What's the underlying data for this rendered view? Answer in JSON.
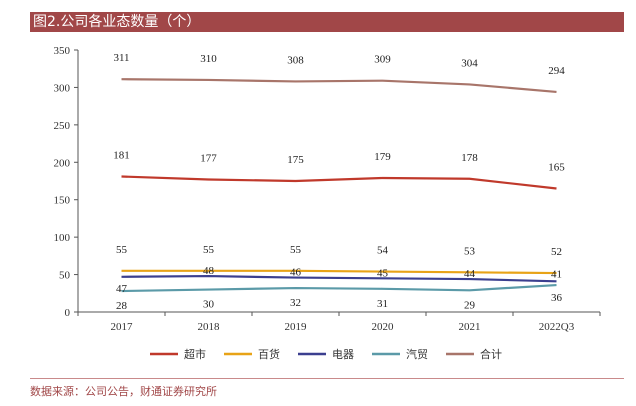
{
  "header": {
    "title": "图2.公司各业态数量（个）"
  },
  "footer": {
    "source": "数据来源：公司公告，财通证券研究所"
  },
  "chart_data": {
    "type": "line",
    "categories": [
      "2017",
      "2018",
      "2019",
      "2020",
      "2021",
      "2022Q3"
    ],
    "ylim": [
      0,
      350
    ],
    "yticks": [
      0,
      50,
      100,
      150,
      200,
      250,
      300,
      350
    ],
    "grid": false,
    "legend_position": "bottom",
    "series": [
      {
        "name": "超市",
        "color": "#c0392b",
        "values": [
          181,
          177,
          175,
          179,
          178,
          165
        ]
      },
      {
        "name": "百货",
        "color": "#e8a317",
        "values": [
          55,
          55,
          55,
          54,
          53,
          52
        ]
      },
      {
        "name": "电器",
        "color": "#3b3f8f",
        "values": [
          47,
          48,
          46,
          45,
          44,
          41
        ]
      },
      {
        "name": "汽贸",
        "color": "#5b9aa8",
        "values": [
          28,
          30,
          32,
          31,
          29,
          36
        ]
      },
      {
        "name": "合计",
        "color": "#a8756a",
        "values": [
          311,
          310,
          308,
          309,
          304,
          294
        ]
      }
    ]
  }
}
